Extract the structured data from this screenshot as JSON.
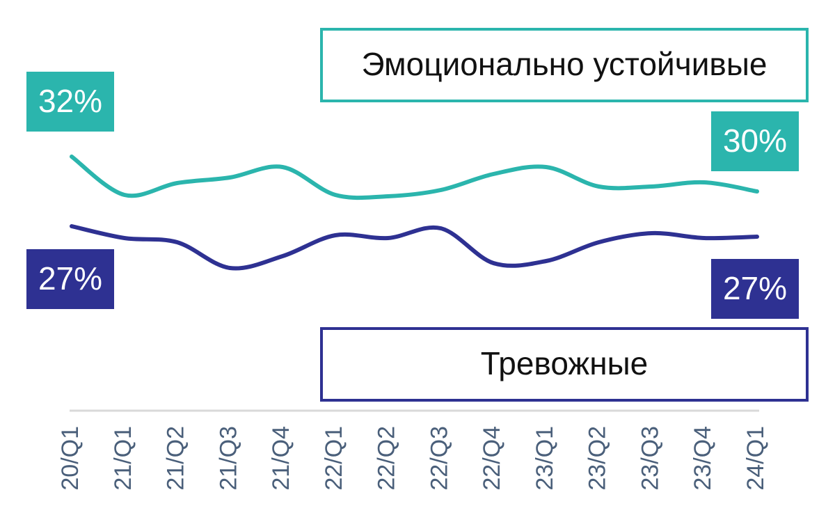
{
  "chart_data": {
    "type": "line",
    "categories": [
      "20/Q1",
      "21/Q1",
      "21/Q2",
      "21/Q3",
      "21/Q4",
      "22/Q1",
      "22/Q2",
      "22/Q3",
      "22/Q4",
      "23/Q1",
      "23/Q2",
      "23/Q3",
      "23/Q4",
      "24/Q1"
    ],
    "series": [
      {
        "name": "Эмоционально устойчивые",
        "color": "#2bb5ad",
        "values": [
          32.4,
          29.65,
          30.5,
          30.9,
          31.65,
          29.65,
          29.55,
          30.0,
          31.15,
          31.65,
          30.25,
          30.25,
          30.55,
          29.9
        ],
        "value_labels": [
          "32%",
          null,
          null,
          null,
          null,
          null,
          null,
          null,
          null,
          null,
          null,
          null,
          null,
          "30%"
        ]
      },
      {
        "name": "Тревожные",
        "color": "#2e3192",
        "values": [
          27.4,
          26.55,
          26.25,
          24.4,
          25.25,
          26.75,
          26.55,
          27.25,
          24.75,
          24.9,
          26.25,
          26.9,
          26.55,
          26.65
        ],
        "value_labels": [
          "27%",
          null,
          null,
          null,
          null,
          null,
          null,
          null,
          null,
          null,
          null,
          null,
          null,
          "27%"
        ]
      }
    ],
    "ylim": [
      14.4,
      36.4
    ],
    "axis_color": "#d9d9d9",
    "label_color": "#4a5f7a"
  }
}
